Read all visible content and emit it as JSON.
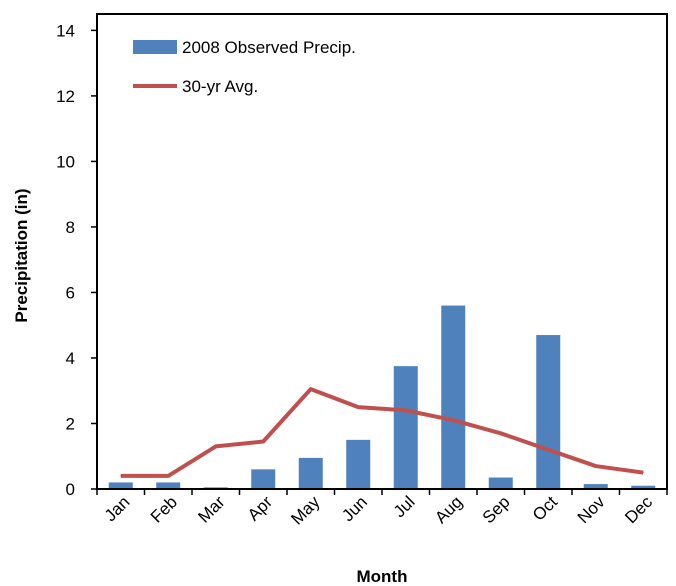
{
  "chart_data": {
    "type": "bar",
    "xlabel": "Month",
    "ylabel": "Precipitation (in)",
    "ylim": [
      0,
      14.5
    ],
    "yticks": [
      0,
      2,
      4,
      6,
      8,
      10,
      12,
      14
    ],
    "grid": false,
    "legend_position": "top-left",
    "categories": [
      "Jan",
      "Feb",
      "Mar",
      "Apr",
      "May",
      "Jun",
      "Jul",
      "Aug",
      "Sep",
      "Oct",
      "Nov",
      "Dec"
    ],
    "series": [
      {
        "name": "2008 Observed Precip.",
        "type": "bar",
        "color": "#4f81bd",
        "values": [
          0.2,
          0.2,
          0.05,
          0.6,
          0.95,
          1.5,
          3.75,
          5.6,
          0.35,
          4.7,
          0.15,
          0.1
        ]
      },
      {
        "name": "30-yr Avg.",
        "type": "line",
        "color": "#c0504d",
        "values": [
          0.4,
          0.4,
          1.3,
          1.45,
          3.05,
          2.5,
          2.4,
          2.1,
          1.7,
          1.2,
          0.7,
          0.5
        ]
      }
    ]
  }
}
